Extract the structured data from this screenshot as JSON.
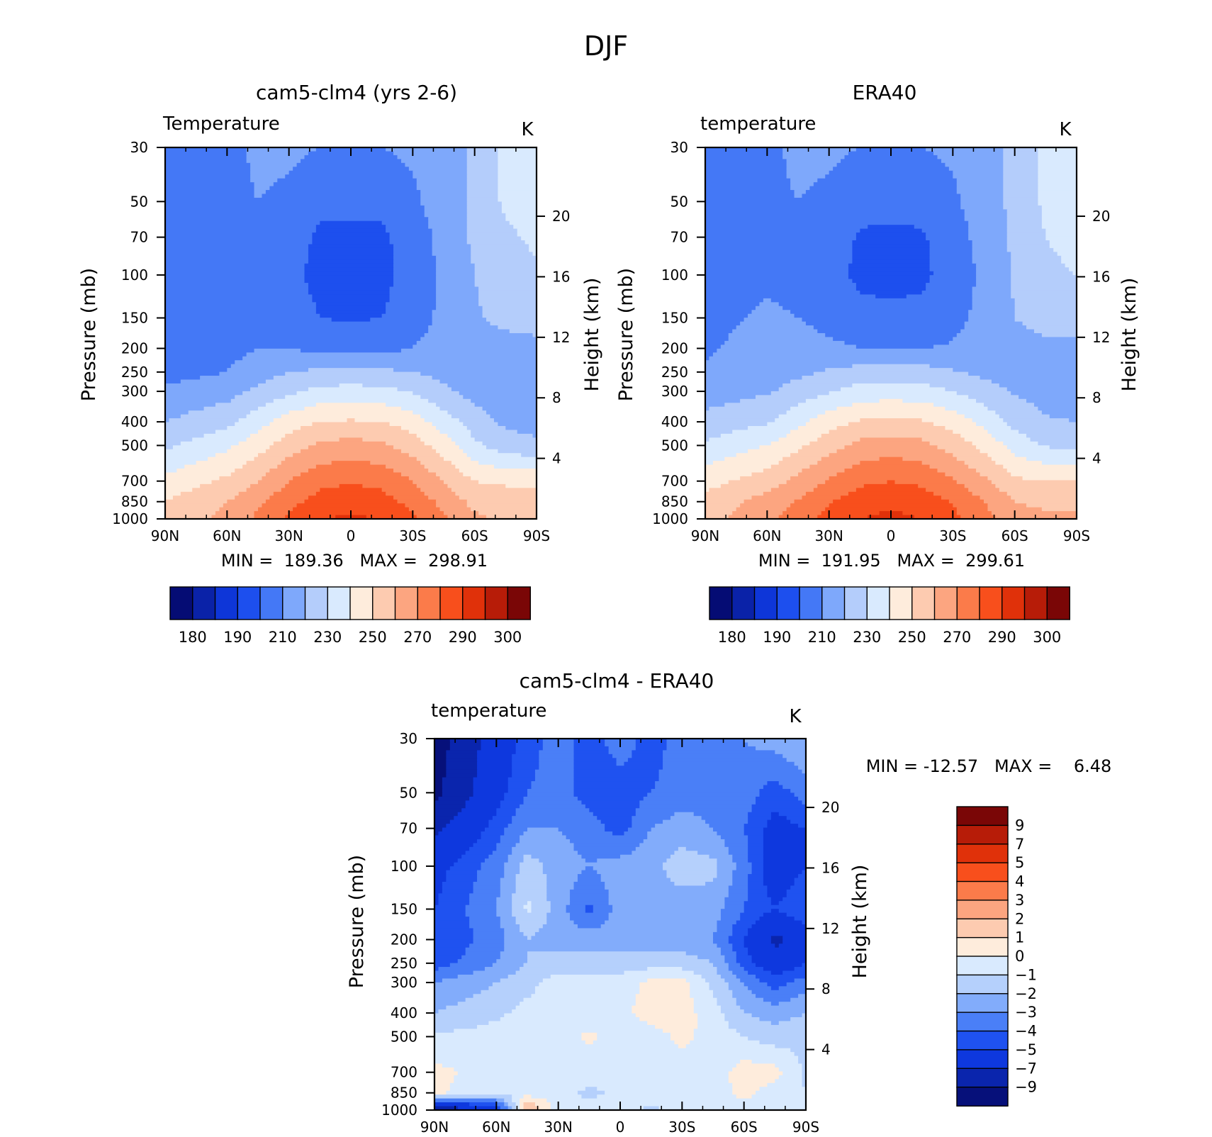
{
  "figure": {
    "title": "DJF"
  },
  "palettes": {
    "full": [
      "#050c74",
      "#0a22a8",
      "#0e36d8",
      "#1d4fee",
      "#4478f6",
      "#7ea8fb",
      "#b4cdfb",
      "#d9eafe",
      "#feecdc",
      "#fdcbb0",
      "#fca580",
      "#fb7b4a",
      "#f84f1c",
      "#e0310a",
      "#b71c08",
      "#7a0606"
    ],
    "diff": [
      "#06107a",
      "#0a25ad",
      "#0e38de",
      "#1f52f0",
      "#4a7ff7",
      "#82acfb",
      "#b5d0fc",
      "#d9eafe",
      "#feecdc",
      "#fdcbb0",
      "#fca580",
      "#fb7b4a",
      "#f84f1c",
      "#e0310a",
      "#b71c08",
      "#7a0606"
    ]
  },
  "panels": [
    {
      "id": "model",
      "title": "cam5-clm4 (yrs 2-6)",
      "left_label": "Temperature",
      "right_label": "K",
      "ylabel": "Pressure (mb)",
      "ylabel2": "Height (km)",
      "stats": "MIN =  189.36   MAX =  298.91",
      "colorbar_labels": [
        "180",
        "190",
        "210",
        "230",
        "250",
        "270",
        "290",
        "300"
      ]
    },
    {
      "id": "obs",
      "title": "ERA40",
      "left_label": "temperature",
      "right_label": "K",
      "ylabel": "Pressure (mb)",
      "ylabel2": "Height (km)",
      "stats": "MIN =  191.95   MAX =  299.61",
      "colorbar_labels": [
        "180",
        "190",
        "210",
        "230",
        "250",
        "270",
        "290",
        "300"
      ]
    },
    {
      "id": "diff",
      "title": "cam5-clm4 - ERA40",
      "left_label": "temperature",
      "right_label": "K",
      "ylabel": "Pressure (mb)",
      "ylabel2": "Height (km)",
      "stats": "MIN = -12.57   MAX =    6.48",
      "colorbar_labels": [
        "9",
        "7",
        "5",
        "4",
        "3",
        "2",
        "1",
        "0",
        "-1",
        "-2",
        "-3",
        "-4",
        "-5",
        "-7",
        "-9"
      ]
    }
  ],
  "chart_data": [
    {
      "type": "heatmap",
      "title": "cam5-clm4 (yrs 2-6)",
      "variable": "Temperature",
      "units": "K",
      "xlabel": "",
      "ylabel": "Pressure (mb)",
      "y2label": "Height (km)",
      "x_ticks": [
        "90N",
        "60N",
        "30N",
        "0",
        "30S",
        "60S",
        "90S"
      ],
      "y_ticks": [
        30,
        50,
        70,
        100,
        150,
        200,
        250,
        300,
        400,
        500,
        700,
        850,
        1000
      ],
      "y2_ticks": [
        4,
        8,
        12,
        16,
        20
      ],
      "ylim": [
        1000,
        30
      ],
      "y_scale": "log",
      "levels": [
        175,
        180,
        185,
        190,
        200,
        210,
        220,
        230,
        240,
        250,
        260,
        270,
        280,
        290,
        295,
        300
      ],
      "x": [
        90,
        60,
        45,
        30,
        15,
        0,
        -15,
        -30,
        -45,
        -60,
        -75,
        -90
      ],
      "y": [
        30,
        50,
        70,
        100,
        150,
        200,
        250,
        300,
        400,
        500,
        700,
        850,
        1000
      ],
      "z": [
        [
          200,
          207,
          212,
          212,
          210,
          210,
          210,
          212,
          215,
          222,
          233,
          236
        ],
        [
          200,
          207,
          210,
          208,
          203,
          203,
          203,
          208,
          215,
          222,
          232,
          236
        ],
        [
          200,
          207,
          209,
          205,
          198,
          197,
          198,
          205,
          213,
          222,
          228,
          232
        ],
        [
          201,
          206,
          208,
          203,
          197,
          194,
          197,
          204,
          212,
          220,
          226,
          228
        ],
        [
          203,
          206,
          209,
          205,
          200,
          199,
          200,
          206,
          212,
          219,
          222,
          224
        ],
        [
          204,
          207,
          210,
          210,
          207,
          206,
          207,
          210,
          214,
          217,
          217,
          217
        ],
        [
          206,
          210,
          215,
          220,
          222,
          222,
          222,
          220,
          217,
          215,
          213,
          212
        ],
        [
          212,
          216,
          222,
          228,
          233,
          234,
          233,
          229,
          222,
          216,
          213,
          211
        ],
        [
          220,
          227,
          236,
          245,
          250,
          251,
          250,
          245,
          235,
          225,
          218,
          216
        ],
        [
          228,
          238,
          246,
          255,
          262,
          264,
          262,
          255,
          245,
          232,
          225,
          222
        ],
        [
          243,
          252,
          260,
          270,
          277,
          279,
          277,
          270,
          260,
          250,
          248,
          248
        ],
        [
          250,
          260,
          268,
          277,
          284,
          286,
          284,
          277,
          267,
          257,
          256,
          256
        ],
        [
          252,
          263,
          272,
          282,
          289,
          292,
          289,
          282,
          272,
          262,
          258,
          258
        ]
      ]
    },
    {
      "type": "heatmap",
      "title": "ERA40",
      "variable": "temperature",
      "units": "K",
      "xlabel": "",
      "ylabel": "Pressure (mb)",
      "y2label": "Height (km)",
      "x_ticks": [
        "90N",
        "60N",
        "30N",
        "0",
        "30S",
        "60S",
        "90S"
      ],
      "y_ticks": [
        30,
        50,
        70,
        100,
        150,
        200,
        250,
        300,
        400,
        500,
        700,
        850,
        1000
      ],
      "y2_ticks": [
        4,
        8,
        12,
        16,
        20
      ],
      "ylim": [
        1000,
        30
      ],
      "y_scale": "log",
      "levels": [
        175,
        180,
        185,
        190,
        200,
        210,
        220,
        230,
        240,
        250,
        260,
        270,
        280,
        290,
        295,
        300
      ],
      "x": [
        90,
        60,
        45,
        30,
        15,
        0,
        -15,
        -30,
        -45,
        -60,
        -75,
        -90
      ],
      "y": [
        30,
        50,
        70,
        100,
        150,
        200,
        250,
        300,
        400,
        500,
        700,
        850,
        1000
      ],
      "z": [
        [
          205,
          208,
          212,
          212,
          210,
          210,
          210,
          212,
          216,
          222,
          233,
          236
        ],
        [
          205,
          208,
          210,
          208,
          203,
          203,
          203,
          208,
          216,
          222,
          232,
          236
        ],
        [
          205,
          208,
          209,
          205,
          199,
          198,
          199,
          205,
          214,
          222,
          230,
          233
        ],
        [
          206,
          209,
          208,
          203,
          198,
          197,
          198,
          204,
          212,
          221,
          228,
          230
        ],
        [
          208,
          211,
          210,
          207,
          203,
          202,
          203,
          207,
          213,
          220,
          223,
          223
        ],
        [
          209,
          213,
          214,
          212,
          210,
          209,
          210,
          211,
          214,
          217,
          218,
          218
        ],
        [
          211,
          214,
          218,
          221,
          224,
          224,
          224,
          221,
          218,
          216,
          215,
          215
        ],
        [
          215,
          219,
          224,
          229,
          234,
          235,
          234,
          230,
          224,
          219,
          216,
          215
        ],
        [
          223,
          229,
          237,
          246,
          251,
          252,
          251,
          246,
          237,
          227,
          221,
          220
        ],
        [
          232,
          240,
          248,
          256,
          263,
          265,
          263,
          256,
          247,
          236,
          229,
          228
        ],
        [
          246,
          255,
          263,
          271,
          278,
          280,
          278,
          271,
          262,
          252,
          250,
          250
        ],
        [
          254,
          264,
          271,
          279,
          285,
          287,
          285,
          279,
          270,
          260,
          258,
          258
        ],
        [
          256,
          267,
          275,
          283,
          290,
          293,
          290,
          283,
          274,
          264,
          262,
          262
        ]
      ]
    },
    {
      "type": "heatmap",
      "title": "cam5-clm4 - ERA40",
      "variable": "temperature",
      "units": "K",
      "xlabel": "",
      "ylabel": "Pressure (mb)",
      "y2label": "Height (km)",
      "x_ticks": [
        "90N",
        "60N",
        "30N",
        "0",
        "30S",
        "60S",
        "90S"
      ],
      "y_ticks": [
        30,
        50,
        70,
        100,
        150,
        200,
        250,
        300,
        400,
        500,
        700,
        850,
        1000
      ],
      "y2_ticks": [
        4,
        8,
        12,
        16,
        20
      ],
      "ylim": [
        1000,
        30
      ],
      "y_scale": "log",
      "levels": [
        -11,
        -9,
        -7,
        -5,
        -4,
        -3,
        -2,
        -1,
        0,
        1,
        2,
        3,
        4,
        5,
        7,
        9
      ],
      "x": [
        90,
        60,
        45,
        30,
        15,
        0,
        -15,
        -30,
        -45,
        -60,
        -75,
        -90
      ],
      "y": [
        30,
        50,
        70,
        100,
        150,
        200,
        250,
        300,
        400,
        500,
        700,
        850,
        1000
      ],
      "z": [
        [
          -10,
          -6,
          -4.5,
          -3.5,
          -4.5,
          -3.5,
          -4.5,
          -3.5,
          -3,
          -3,
          -2.5,
          -2
        ],
        [
          -9.5,
          -5.5,
          -4,
          -3.5,
          -4.5,
          -4.5,
          -4,
          -3.5,
          -3.5,
          -3.5,
          -4.5,
          -3.5
        ],
        [
          -7.5,
          -4.5,
          -3,
          -3,
          -3.5,
          -4.5,
          -3,
          -2.5,
          -3,
          -4,
          -5.5,
          -5
        ],
        [
          -5.5,
          -3.5,
          -1.5,
          -2.5,
          -3,
          -2.5,
          -2.3,
          -1.5,
          -1.7,
          -3.5,
          -6,
          -5
        ],
        [
          -5,
          -3,
          -0.8,
          -2.5,
          -4.2,
          -2.5,
          -2.5,
          -2.5,
          -2.5,
          -4,
          -5,
          -4
        ],
        [
          -5,
          -3.5,
          -2,
          -2.5,
          -2.5,
          -2.5,
          -2.5,
          -2.5,
          -3,
          -5,
          -7.5,
          -6
        ],
        [
          -4.5,
          -3,
          -2,
          -1.5,
          -1.5,
          -1.5,
          -1.5,
          -1.5,
          -2,
          -4.5,
          -6,
          -5
        ],
        [
          -3,
          -2,
          -1.3,
          -0.6,
          -0.5,
          -0.6,
          0.3,
          0.3,
          -1.3,
          -3,
          -4.5,
          -3.5
        ],
        [
          -2,
          -1.2,
          -0.7,
          -0.5,
          -0.5,
          -0.3,
          0.5,
          0.5,
          -0.6,
          -2,
          -2.5,
          -2
        ],
        [
          -0.8,
          -0.6,
          -0.5,
          -0.5,
          0.2,
          -0.5,
          -0.5,
          0.3,
          -0.4,
          -1,
          -1.5,
          -1.2
        ],
        [
          0.3,
          -0.5,
          -0.7,
          -0.5,
          -0.5,
          -0.5,
          -0.5,
          -0.5,
          -0.5,
          0.5,
          0.4,
          -1.2
        ],
        [
          0.2,
          -0.8,
          -0.5,
          -0.7,
          -1.2,
          -0.8,
          -0.5,
          -0.5,
          -0.5,
          0.3,
          -0.5,
          -1
        ],
        [
          -9,
          -6,
          2.5,
          -0.5,
          -0.7,
          -0.5,
          -1.2,
          -0.5,
          -0.5,
          -0.5,
          -0.5,
          -0.5
        ]
      ]
    }
  ]
}
